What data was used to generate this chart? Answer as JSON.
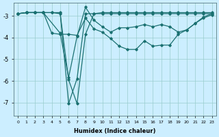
{
  "xlabel": "Humidex (Indice chaleur)",
  "background_color": "#cceeff",
  "line_color": "#1a7070",
  "grid_color": "#99cccc",
  "xlim": [
    -0.5,
    23.5
  ],
  "ylim": [
    -7.6,
    -2.4
  ],
  "yticks": [
    -7,
    -6,
    -5,
    -4,
    -3
  ],
  "xticks": [
    0,
    1,
    2,
    3,
    4,
    5,
    6,
    7,
    8,
    9,
    10,
    11,
    12,
    13,
    14,
    15,
    16,
    17,
    18,
    19,
    20,
    21,
    22,
    23
  ],
  "lines": [
    {
      "x": [
        0,
        1,
        2,
        3,
        4,
        5,
        6,
        7,
        8,
        9,
        10,
        11,
        12,
        13,
        14,
        15,
        16,
        17,
        18,
        19,
        20,
        21,
        22,
        23
      ],
      "y": [
        -2.9,
        -2.85,
        -2.85,
        -2.85,
        -2.85,
        -2.85,
        -7.05,
        -5.9,
        -2.9,
        -2.9,
        -2.85,
        -2.85,
        -2.85,
        -2.85,
        -2.85,
        -2.85,
        -2.85,
        -2.85,
        -2.85,
        -2.85,
        -2.85,
        -2.85,
        -2.85,
        -2.85
      ]
    },
    {
      "x": [
        0,
        1,
        2,
        3,
        4,
        5,
        6,
        7,
        8,
        9,
        10,
        11,
        12,
        13,
        14,
        15,
        16,
        17,
        18,
        19,
        20,
        21,
        22,
        23
      ],
      "y": [
        -2.9,
        -2.85,
        -2.85,
        -2.85,
        -2.85,
        -2.9,
        -5.95,
        -7.05,
        -3.85,
        -2.9,
        -2.9,
        -2.9,
        -2.9,
        -2.9,
        -2.9,
        -2.9,
        -2.9,
        -2.9,
        -2.9,
        -2.9,
        -2.9,
        -2.9,
        -2.9,
        -2.9
      ]
    },
    {
      "x": [
        0,
        1,
        2,
        3,
        5,
        6,
        7,
        8,
        9,
        10,
        11,
        12,
        13,
        14,
        15,
        16,
        17,
        18,
        19,
        20,
        21,
        22,
        23
      ],
      "y": [
        -2.9,
        -2.85,
        -2.85,
        -2.85,
        -3.8,
        -5.85,
        -3.95,
        -2.6,
        -3.2,
        -3.5,
        -3.75,
        -3.55,
        -3.55,
        -3.5,
        -3.4,
        -3.5,
        -3.4,
        -3.5,
        -3.75,
        -3.65,
        -3.35,
        -3.05,
        -2.9
      ]
    },
    {
      "x": [
        0,
        1,
        2,
        3,
        4,
        5,
        6,
        7,
        8,
        9,
        10,
        11,
        12,
        13,
        14,
        15,
        16,
        17,
        18,
        19,
        20,
        21,
        22,
        23
      ],
      "y": [
        -2.9,
        -2.85,
        -2.85,
        -2.85,
        -3.8,
        -3.85,
        -3.85,
        -3.9,
        -3.1,
        -3.6,
        -3.75,
        -4.05,
        -4.4,
        -4.55,
        -4.55,
        -4.15,
        -4.4,
        -4.35,
        -4.35,
        -3.85,
        -3.65,
        -3.35,
        -3.1,
        -2.95
      ]
    }
  ]
}
